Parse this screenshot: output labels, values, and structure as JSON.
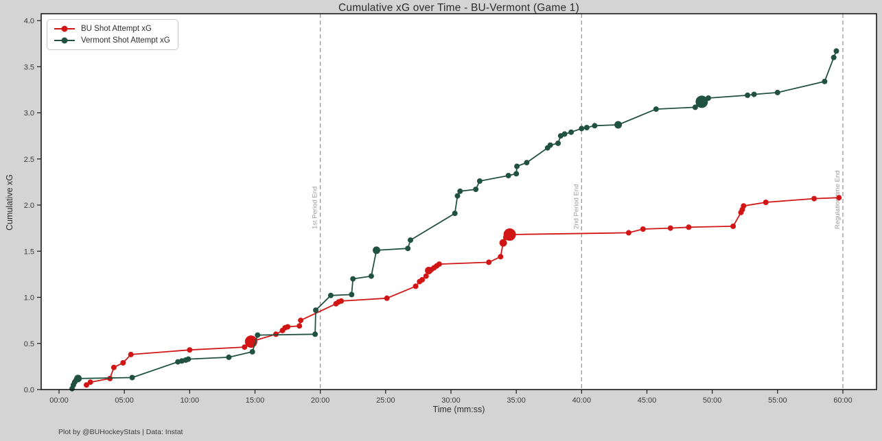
{
  "title": "Cumulative xG over Time - BU-Vermont (Game 1)",
  "footer": "Plot by @BUHockeyStats | Data: Instat",
  "chart_data": {
    "type": "line",
    "title": "Cumulative xG over Time - BU-Vermont (Game 1)",
    "xlabel": "Time (mm:ss)",
    "ylabel": "Cumulative xG",
    "x_ticks": [
      "00:00",
      "05:00",
      "10:00",
      "15:00",
      "20:00",
      "25:00",
      "30:00",
      "35:00",
      "40:00",
      "45:00",
      "50:00",
      "55:00",
      "60:00"
    ],
    "x_tick_minutes": [
      0,
      5,
      10,
      15,
      20,
      25,
      30,
      35,
      40,
      45,
      50,
      55,
      60
    ],
    "y_ticks": [
      0.0,
      0.5,
      1.0,
      1.5,
      2.0,
      2.5,
      3.0,
      3.5,
      4.0
    ],
    "ylim": [
      0.0,
      4.07
    ],
    "xlim_minutes": [
      -1.4,
      62.6
    ],
    "grid": false,
    "legend_position": "upper-left",
    "colors": {
      "bu": "#d11515",
      "vermont": "#215140",
      "period_line": "#909090",
      "period_label": "#9a9a9a",
      "spine": "#1a1a1a"
    },
    "period_lines": [
      {
        "minutes": 20,
        "label": "1st Period End"
      },
      {
        "minutes": 40,
        "label": "2nd Period End"
      },
      {
        "minutes": 60,
        "label": "Regulation time End"
      }
    ],
    "marker_size_legend": "point format [minutes, cumulative_xg, size]; size 3 = goal (large marker), 2 = medium, absent = regular shot",
    "series": [
      {
        "name": "BU Shot Attempt xG",
        "color": "#d11515",
        "final_xg": 2.08,
        "points": [
          [
            2.1,
            0.05
          ],
          [
            2.4,
            0.08
          ],
          [
            3.9,
            0.12
          ],
          [
            4.2,
            0.24
          ],
          [
            4.9,
            0.29
          ],
          [
            5.5,
            0.38
          ],
          [
            10.0,
            0.43
          ],
          [
            14.2,
            0.46
          ],
          [
            14.7,
            0.52,
            3
          ],
          [
            16.6,
            0.6
          ],
          [
            17.1,
            0.64
          ],
          [
            17.3,
            0.67
          ],
          [
            17.5,
            0.68
          ],
          [
            18.4,
            0.69
          ],
          [
            18.5,
            0.75
          ],
          [
            21.2,
            0.93
          ],
          [
            21.4,
            0.95
          ],
          [
            21.6,
            0.96
          ],
          [
            25.1,
            0.99
          ],
          [
            27.3,
            1.12
          ],
          [
            27.6,
            1.17
          ],
          [
            27.8,
            1.19
          ],
          [
            28.1,
            1.23
          ],
          [
            28.3,
            1.29,
            2
          ],
          [
            28.5,
            1.3
          ],
          [
            28.7,
            1.32
          ],
          [
            28.9,
            1.34
          ],
          [
            29.1,
            1.36
          ],
          [
            32.9,
            1.38
          ],
          [
            33.8,
            1.44
          ],
          [
            34.0,
            1.59,
            2
          ],
          [
            34.2,
            1.65
          ],
          [
            34.5,
            1.68,
            3
          ],
          [
            43.6,
            1.7
          ],
          [
            44.7,
            1.74
          ],
          [
            46.8,
            1.75
          ],
          [
            48.2,
            1.76
          ],
          [
            51.6,
            1.77
          ],
          [
            52.2,
            1.92
          ],
          [
            52.3,
            1.95
          ],
          [
            52.4,
            1.99
          ],
          [
            54.1,
            2.03
          ],
          [
            57.8,
            2.07
          ],
          [
            59.7,
            2.08
          ]
        ]
      },
      {
        "name": "Vermont Shot Attempt xG",
        "color": "#215140",
        "final_xg": 3.67,
        "points": [
          [
            1.0,
            0.01
          ],
          [
            1.1,
            0.05
          ],
          [
            1.2,
            0.08
          ],
          [
            1.3,
            0.1
          ],
          [
            1.45,
            0.12,
            2
          ],
          [
            5.6,
            0.13
          ],
          [
            9.1,
            0.3
          ],
          [
            9.4,
            0.31
          ],
          [
            9.7,
            0.32
          ],
          [
            9.9,
            0.33
          ],
          [
            13.0,
            0.35
          ],
          [
            14.8,
            0.41
          ],
          [
            15.2,
            0.59
          ],
          [
            19.6,
            0.6
          ],
          [
            19.65,
            0.86
          ],
          [
            20.8,
            1.02
          ],
          [
            22.4,
            1.03
          ],
          [
            22.5,
            1.2
          ],
          [
            23.9,
            1.23
          ],
          [
            24.3,
            1.51,
            2
          ],
          [
            26.7,
            1.53
          ],
          [
            26.9,
            1.62
          ],
          [
            30.3,
            1.91
          ],
          [
            30.5,
            2.1
          ],
          [
            30.7,
            2.15
          ],
          [
            31.9,
            2.17
          ],
          [
            32.2,
            2.26
          ],
          [
            34.4,
            2.32
          ],
          [
            35.0,
            2.34
          ],
          [
            35.05,
            2.42
          ],
          [
            35.8,
            2.46
          ],
          [
            37.4,
            2.62
          ],
          [
            37.6,
            2.65
          ],
          [
            38.2,
            2.67
          ],
          [
            38.4,
            2.75
          ],
          [
            38.7,
            2.77
          ],
          [
            39.2,
            2.79
          ],
          [
            40.0,
            2.83
          ],
          [
            40.4,
            2.84
          ],
          [
            41.0,
            2.86
          ],
          [
            42.8,
            2.87,
            2
          ],
          [
            45.7,
            3.04
          ],
          [
            48.7,
            3.06
          ],
          [
            49.2,
            3.12,
            3
          ],
          [
            49.7,
            3.16
          ],
          [
            52.7,
            3.19
          ],
          [
            53.2,
            3.2
          ],
          [
            55.0,
            3.22
          ],
          [
            58.6,
            3.34
          ],
          [
            59.3,
            3.6
          ],
          [
            59.5,
            3.67
          ]
        ]
      }
    ]
  }
}
